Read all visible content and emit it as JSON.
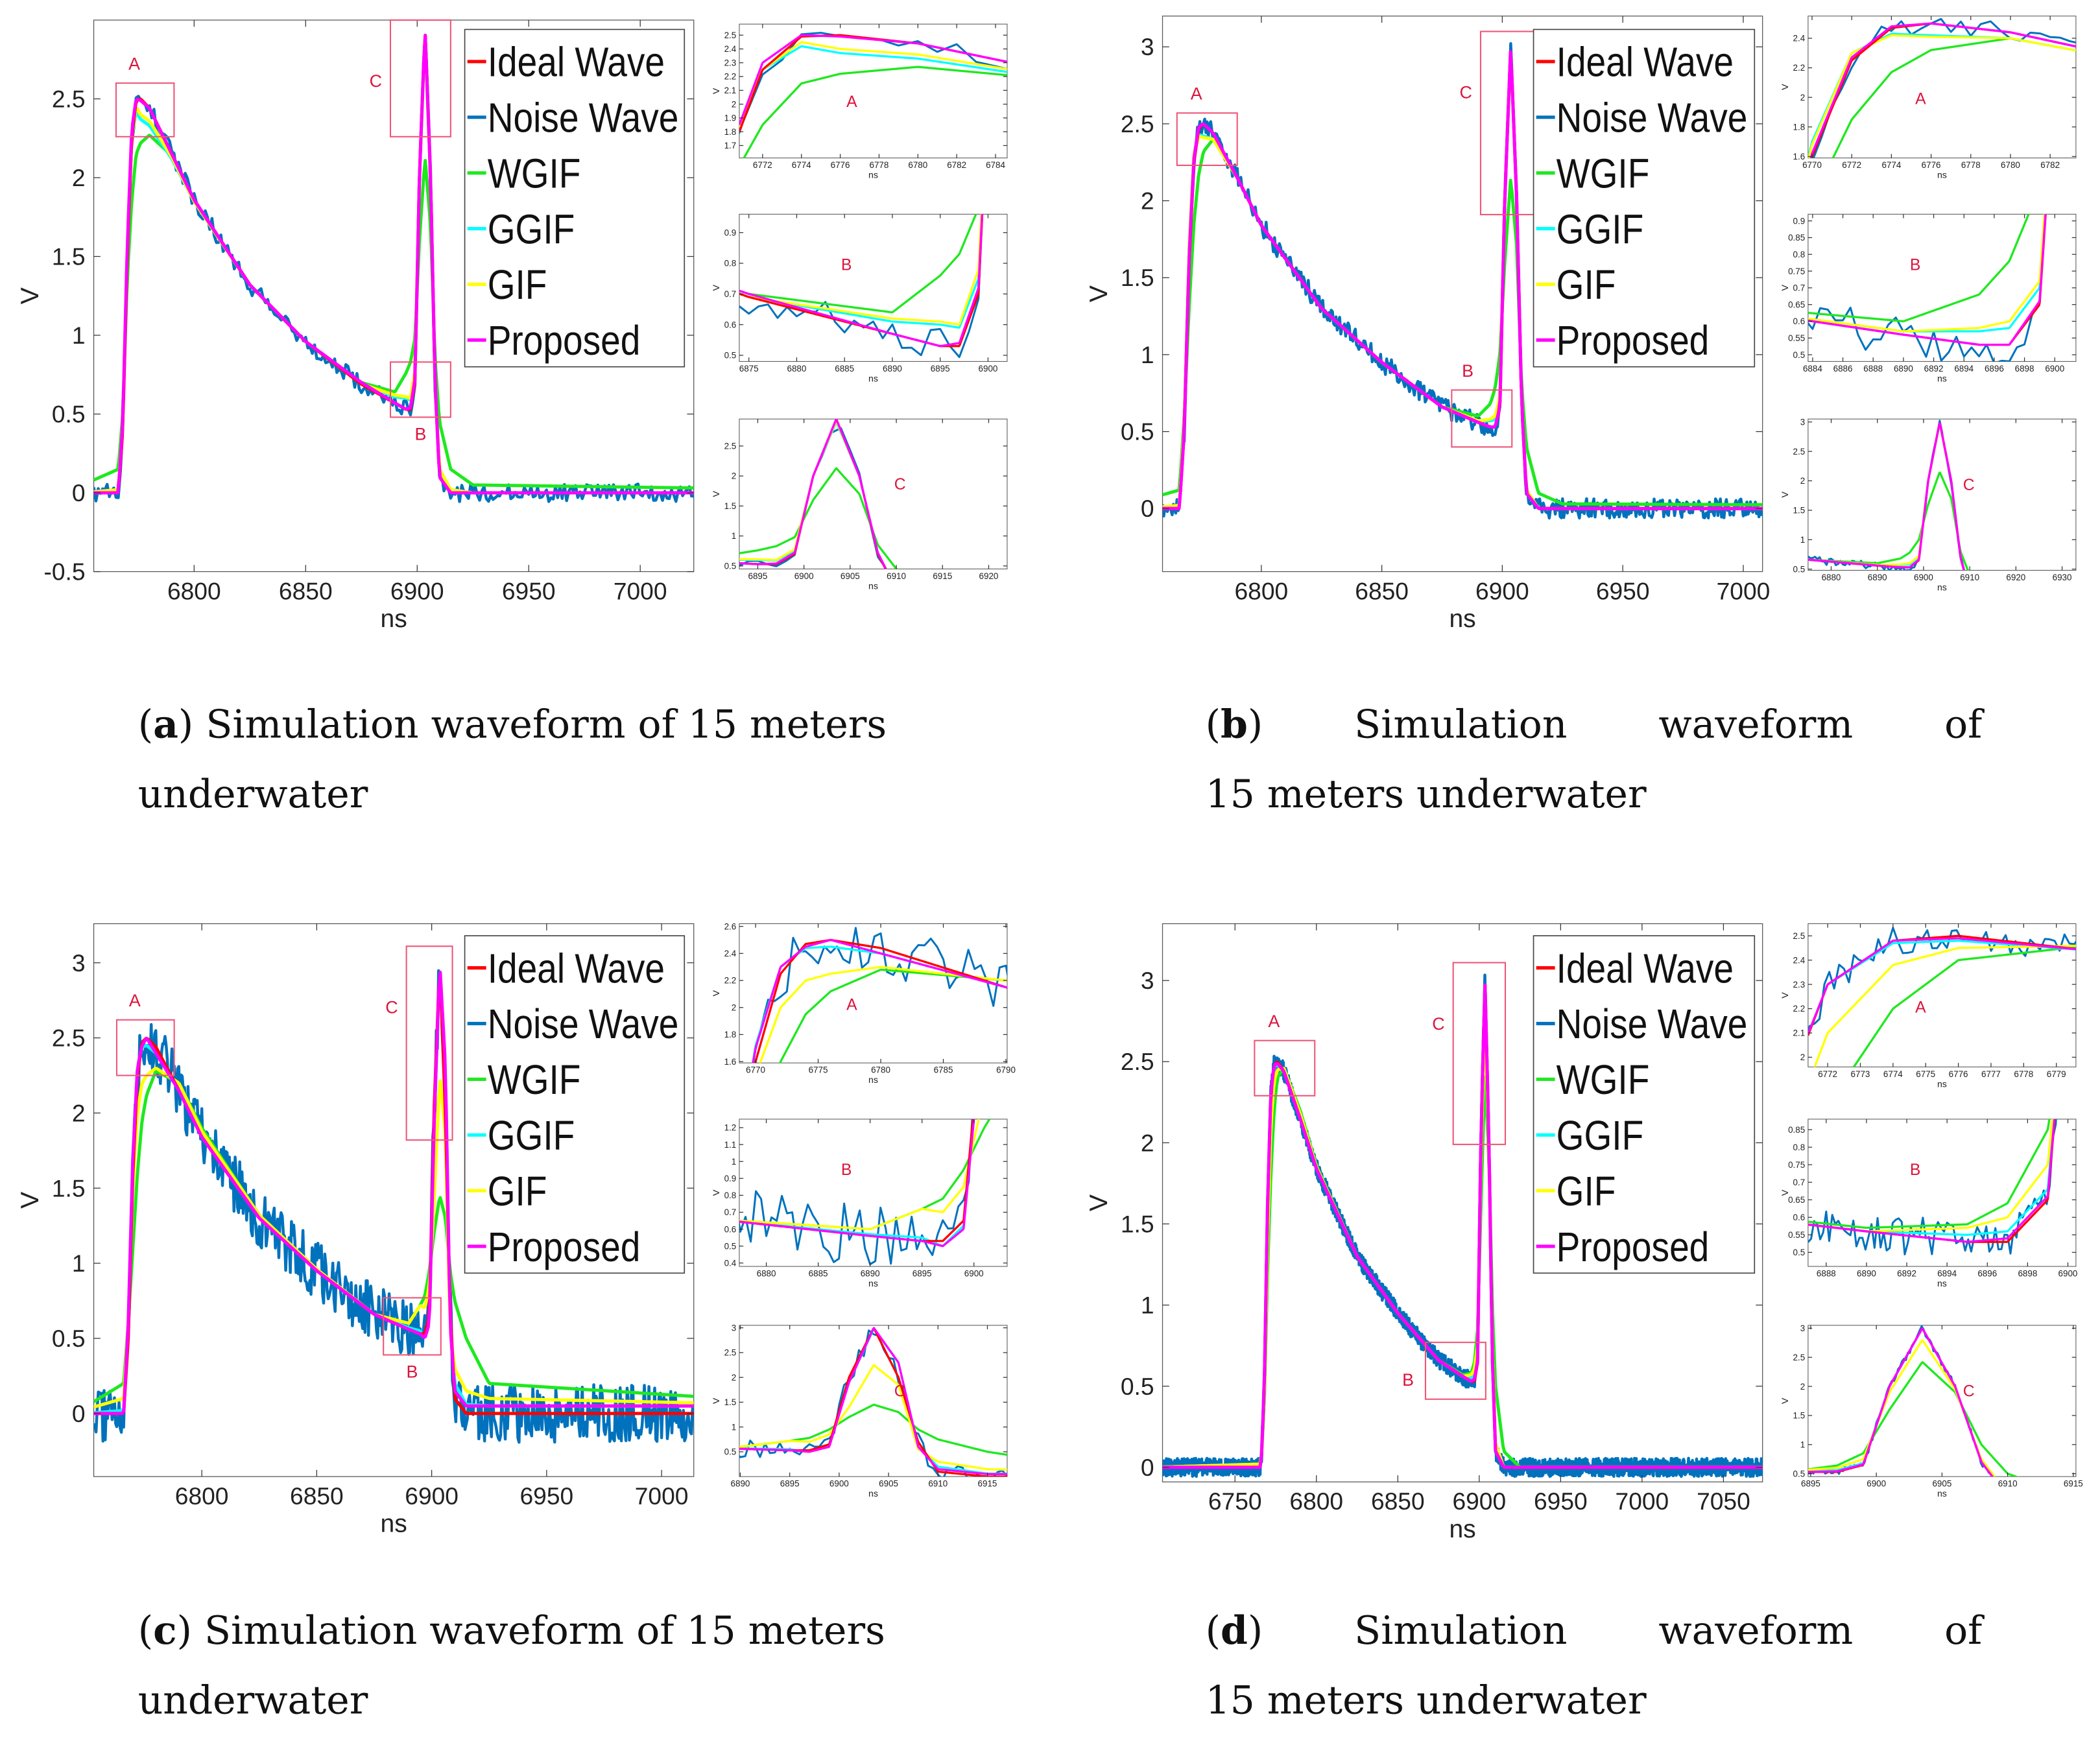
{
  "legend": [
    "Ideal Wave",
    "Noise Wave",
    "WGIF",
    "GGIF",
    "GIF",
    "Proposed"
  ],
  "colors": {
    "ideal": "#ff0000",
    "noise": "#0072bd",
    "wgif": "#1fe81f",
    "ggif": "#00ffff",
    "gif": "#ffff00",
    "proposed": "#ff00ff",
    "marker": "#ee5577",
    "marker_text": "#dc143c"
  },
  "axis": {
    "xlabel": "ns",
    "ylabel": "V"
  },
  "region_labels": [
    "A",
    "B",
    "C"
  ],
  "captions": [
    {
      "label": "a",
      "open": "(",
      "close": ")",
      "line1": "Simulation waveform of 15 meters",
      "line2": "underwater"
    },
    {
      "label": "b",
      "open": "(",
      "close": ")",
      "line1": "Simulation waveform of",
      "line2": "15 meters underwater"
    },
    {
      "label": "c",
      "open": "(",
      "close": ")",
      "line1": "Simulation waveform of 15 meters",
      "line2": "underwater"
    },
    {
      "label": "d",
      "open": "(",
      "close": ")",
      "line1": "Simulation waveform of",
      "line2": "15 meters underwater"
    }
  ],
  "chart_data": [
    {
      "type": "line",
      "panel": "a",
      "xlabel": "ns",
      "ylabel": "V",
      "xlim": [
        6755,
        7024
      ],
      "ylim": [
        -0.5,
        3.0
      ],
      "xticks": {
        "start": 6800,
        "step": 50,
        "end": 7000
      },
      "yticks": {
        "start": -0.5,
        "step": 0.5,
        "end": 2.5
      },
      "x": [
        6750,
        6766,
        6768,
        6770,
        6772,
        6774,
        6776,
        6780,
        6790,
        6800,
        6825,
        6850,
        6875,
        6890,
        6895,
        6897,
        6899,
        6901,
        6903.5,
        6906,
        6908,
        6910,
        6915,
        6925,
        7080
      ],
      "series": {
        "ideal": [
          0,
          0,
          0.4,
          1.5,
          2.25,
          2.49,
          2.5,
          2.44,
          2.15,
          1.86,
          1.32,
          0.96,
          0.69,
          0.57,
          0.53,
          0.53,
          0.7,
          2.0,
          2.95,
          2.0,
          0.7,
          0.1,
          0,
          0,
          0
        ],
        "wgif": [
          0.05,
          0.15,
          0.5,
          1.35,
          1.85,
          2.15,
          2.22,
          2.27,
          2.14,
          1.85,
          1.32,
          0.96,
          0.7,
          0.64,
          0.76,
          0.83,
          0.98,
          1.6,
          2.13,
          1.7,
          0.85,
          0.45,
          0.15,
          0.05,
          0.02
        ],
        "ggif": [
          0,
          0.02,
          0.45,
          1.55,
          2.25,
          2.42,
          2.37,
          2.33,
          2.12,
          1.85,
          1.32,
          0.96,
          0.69,
          0.61,
          0.6,
          0.59,
          0.75,
          2.0,
          2.9,
          2.0,
          0.7,
          0.15,
          0.02,
          0,
          0
        ],
        "gif": [
          0,
          0.02,
          0.45,
          1.55,
          2.25,
          2.45,
          2.4,
          2.36,
          2.13,
          1.85,
          1.32,
          0.96,
          0.69,
          0.62,
          0.61,
          0.6,
          0.78,
          2.0,
          2.92,
          2.0,
          0.7,
          0.15,
          0.02,
          0,
          0
        ],
        "proposed": [
          0,
          0,
          0.45,
          1.55,
          2.3,
          2.5,
          2.49,
          2.44,
          2.15,
          1.86,
          1.32,
          0.96,
          0.7,
          0.57,
          0.53,
          0.54,
          0.72,
          2.0,
          2.95,
          2.0,
          0.72,
          0.1,
          0,
          0,
          0
        ]
      },
      "noise_std": 0.035,
      "regions": [
        {
          "label": "A",
          "x": [
            6765,
            6791
          ],
          "y": [
            2.26,
            2.6
          ]
        },
        {
          "label": "B",
          "x": [
            6888,
            6915
          ],
          "y": [
            0.48,
            0.83
          ]
        },
        {
          "label": "C",
          "x": [
            6888,
            6915
          ],
          "y": [
            2.26,
            3.0
          ]
        }
      ],
      "insets": [
        {
          "label": "A",
          "xlim": [
            6770.8,
            6784.6
          ],
          "ylim": [
            1.61,
            2.58
          ],
          "xticks": {
            "start": 6772,
            "step": 2,
            "end": 6784
          },
          "yticks": {
            "start": 1.7,
            "step": 0.1,
            "end": 2.5
          }
        },
        {
          "label": "B",
          "xlim": [
            6874,
            6902
          ],
          "ylim": [
            0.48,
            0.96
          ],
          "xticks": {
            "start": 6875,
            "step": 5,
            "end": 6900
          },
          "yticks": {
            "start": 0.5,
            "step": 0.1,
            "end": 0.9
          }
        },
        {
          "label": "C",
          "xlim": [
            6893,
            6922
          ],
          "ylim": [
            0.45,
            2.95
          ],
          "xticks": {
            "start": 6895,
            "step": 5,
            "end": 6920
          },
          "yticks": {
            "start": 0.5,
            "step": 0.5,
            "end": 2.5
          }
        }
      ]
    },
    {
      "type": "line",
      "panel": "b",
      "xlabel": "ns",
      "ylabel": "V",
      "xlim": [
        6759,
        7008
      ],
      "ylim": [
        -0.41,
        3.2
      ],
      "xticks": {
        "start": 6800,
        "step": 50,
        "end": 7000
      },
      "yticks": {
        "start": 0,
        "step": 0.5,
        "end": 3
      },
      "x": [
        6750,
        6766,
        6768,
        6770,
        6772,
        6774,
        6776,
        6780,
        6790,
        6800,
        6825,
        6850,
        6875,
        6890,
        6895,
        6897,
        6899,
        6901,
        6903.5,
        6906,
        6908,
        6910,
        6915,
        6925,
        7080
      ],
      "series": {
        "ideal": [
          0,
          0,
          0.5,
          1.6,
          2.25,
          2.47,
          2.5,
          2.44,
          2.15,
          1.84,
          1.3,
          0.95,
          0.66,
          0.56,
          0.53,
          0.53,
          0.65,
          2.0,
          3.0,
          2.0,
          0.7,
          0.1,
          0,
          0,
          0
        ],
        "wgif": [
          0.05,
          0.12,
          0.6,
          1.3,
          1.85,
          2.17,
          2.32,
          2.4,
          2.15,
          1.84,
          1.3,
          0.95,
          0.66,
          0.6,
          0.68,
          0.78,
          1.0,
          1.6,
          2.15,
          1.7,
          0.8,
          0.4,
          0.1,
          0.03,
          0.02
        ],
        "ggif": [
          0,
          0.02,
          0.55,
          1.7,
          2.3,
          2.43,
          2.42,
          2.4,
          2.15,
          1.84,
          1.3,
          0.95,
          0.66,
          0.57,
          0.57,
          0.58,
          0.7,
          2.0,
          2.98,
          2.0,
          0.7,
          0.12,
          0,
          0,
          0
        ],
        "gif": [
          0,
          0.02,
          0.55,
          1.68,
          2.3,
          2.42,
          2.41,
          2.4,
          2.15,
          1.84,
          1.3,
          0.95,
          0.66,
          0.57,
          0.58,
          0.6,
          0.72,
          2.0,
          2.98,
          2.0,
          0.7,
          0.12,
          0,
          0,
          0
        ],
        "proposed": [
          0,
          0,
          0.5,
          1.62,
          2.27,
          2.48,
          2.5,
          2.44,
          2.15,
          1.84,
          1.3,
          0.95,
          0.66,
          0.56,
          0.53,
          0.53,
          0.66,
          2.0,
          3.0,
          2.0,
          0.7,
          0.1,
          0,
          0,
          0
        ]
      },
      "noise_std": 0.04,
      "regions": [
        {
          "label": "A",
          "x": [
            6765,
            6790
          ],
          "y": [
            2.23,
            2.57
          ]
        },
        {
          "label": "B",
          "x": [
            6879,
            6904
          ],
          "y": [
            0.4,
            0.77
          ]
        },
        {
          "label": "C",
          "x": [
            6891,
            6916
          ],
          "y": [
            1.91,
            3.1
          ]
        }
      ],
      "insets": [
        {
          "label": "A",
          "xlim": [
            6769.8,
            6783.3
          ],
          "ylim": [
            1.59,
            2.55
          ],
          "xticks": {
            "start": 6770,
            "step": 2,
            "end": 6782
          },
          "yticks": {
            "start": 1.6,
            "step": 0.2,
            "end": 2.4
          }
        },
        {
          "label": "B",
          "xlim": [
            6883.7,
            6901.4
          ],
          "ylim": [
            0.48,
            0.92
          ],
          "xticks": {
            "start": 6884,
            "step": 2,
            "end": 6900
          },
          "yticks": {
            "start": 0.5,
            "step": 0.05,
            "end": 0.9
          }
        },
        {
          "label": "C",
          "xlim": [
            6875,
            6933
          ],
          "ylim": [
            0.48,
            3.05
          ],
          "xticks": {
            "start": 6880,
            "step": 10,
            "end": 6930
          },
          "yticks": {
            "start": 0.5,
            "step": 0.5,
            "end": 3
          }
        }
      ]
    },
    {
      "type": "line",
      "panel": "c",
      "xlabel": "ns",
      "ylabel": "V",
      "xlim": [
        6753,
        7014
      ],
      "ylim": [
        -0.42,
        3.26
      ],
      "xticks": {
        "start": 6800,
        "step": 50,
        "end": 7000
      },
      "yticks": {
        "start": 0,
        "step": 0.5,
        "end": 3
      },
      "x": [
        6750,
        6766,
        6768,
        6770,
        6772,
        6774,
        6776,
        6780,
        6790,
        6800,
        6825,
        6850,
        6875,
        6890,
        6895,
        6897,
        6899,
        6901,
        6903.5,
        6906,
        6908,
        6910,
        6915,
        6925,
        7080
      ],
      "series": {
        "ideal": [
          0,
          0,
          0.5,
          1.6,
          2.25,
          2.47,
          2.5,
          2.44,
          2.15,
          1.84,
          1.3,
          0.95,
          0.66,
          0.56,
          0.53,
          0.53,
          0.65,
          2.0,
          3.0,
          2.0,
          0.7,
          0.1,
          0,
          0,
          0
        ],
        "wgif": [
          0.05,
          0.2,
          0.6,
          1.1,
          1.6,
          1.95,
          2.12,
          2.28,
          2.2,
          1.9,
          1.32,
          0.96,
          0.66,
          0.6,
          0.72,
          0.78,
          0.95,
          1.2,
          1.45,
          1.3,
          0.95,
          0.75,
          0.5,
          0.2,
          0.05
        ],
        "ggif": [
          0,
          0.02,
          0.6,
          1.72,
          2.3,
          2.44,
          2.45,
          2.4,
          2.15,
          1.84,
          1.3,
          0.95,
          0.66,
          0.57,
          0.55,
          0.5,
          0.62,
          1.9,
          2.98,
          2.3,
          0.6,
          0.2,
          0.06,
          0.05,
          0.05
        ],
        "gif": [
          0.03,
          0.1,
          0.6,
          1.5,
          2.0,
          2.2,
          2.25,
          2.3,
          2.2,
          1.88,
          1.32,
          0.96,
          0.66,
          0.6,
          0.72,
          0.7,
          0.85,
          1.4,
          2.25,
          1.85,
          0.55,
          0.3,
          0.15,
          0.1,
          0.05
        ],
        "proposed": [
          0,
          0,
          0.6,
          1.7,
          2.3,
          2.45,
          2.5,
          2.4,
          2.15,
          1.84,
          1.3,
          0.95,
          0.66,
          0.56,
          0.53,
          0.5,
          0.6,
          1.9,
          3.0,
          2.3,
          0.6,
          0.15,
          0.05,
          0.05,
          0.05
        ]
      },
      "noise_std": 0.12,
      "regions": [
        {
          "label": "A",
          "x": [
            6763,
            6788
          ],
          "y": [
            2.25,
            2.62
          ]
        },
        {
          "label": "B",
          "x": [
            6879,
            6904
          ],
          "y": [
            0.39,
            0.77
          ]
        },
        {
          "label": "C",
          "x": [
            6889,
            6909
          ],
          "y": [
            1.82,
            3.11
          ]
        }
      ],
      "insets": [
        {
          "label": "A",
          "xlim": [
            6768.7,
            6790.1
          ],
          "ylim": [
            1.59,
            2.62
          ],
          "xticks": {
            "start": 6770,
            "step": 5,
            "end": 6790
          },
          "yticks": {
            "start": 1.6,
            "step": 0.2,
            "end": 2.6
          }
        },
        {
          "label": "B",
          "xlim": [
            6877.4,
            6903.2
          ],
          "ylim": [
            0.38,
            1.25
          ],
          "xticks": {
            "start": 6880,
            "step": 5,
            "end": 6900
          },
          "yticks": {
            "start": 0.4,
            "step": 0.1,
            "end": 1.2
          }
        },
        {
          "label": "C",
          "xlim": [
            6889.9,
            6917
          ],
          "ylim": [
            0,
            3.05
          ],
          "xticks": {
            "start": 6890,
            "step": 5,
            "end": 6915
          },
          "yticks": {
            "start": 0.5,
            "step": 0.5,
            "end": 3
          }
        }
      ]
    },
    {
      "type": "line",
      "panel": "d",
      "xlabel": "ns",
      "ylabel": "V",
      "xlim": [
        6705.5,
        7074
      ],
      "ylim": [
        -0.09,
        3.35
      ],
      "xticks": {
        "start": 6750,
        "step": 50,
        "end": 7050
      },
      "yticks": {
        "start": 0,
        "step": 0.5,
        "end": 3
      },
      "x": [
        6700,
        6766,
        6768,
        6770,
        6772,
        6774,
        6776,
        6780,
        6790,
        6800,
        6825,
        6850,
        6875,
        6890,
        6895,
        6897,
        6899,
        6901,
        6903.5,
        6906,
        6908,
        6910,
        6915,
        6925,
        7080
      ],
      "series": {
        "ideal": [
          0,
          0,
          0.5,
          1.6,
          2.3,
          2.48,
          2.5,
          2.44,
          2.15,
          1.84,
          1.3,
          0.95,
          0.66,
          0.56,
          0.53,
          0.53,
          0.65,
          2.0,
          3.0,
          2.0,
          0.7,
          0.1,
          0,
          0,
          0
        ],
        "wgif": [
          0,
          0.02,
          0.4,
          1.2,
          1.8,
          2.2,
          2.4,
          2.46,
          2.2,
          1.86,
          1.3,
          0.95,
          0.66,
          0.57,
          0.58,
          0.64,
          0.85,
          1.6,
          2.42,
          1.9,
          1.0,
          0.5,
          0.1,
          0,
          0
        ],
        "ggif": [
          0,
          0.02,
          0.52,
          1.62,
          2.3,
          2.47,
          2.48,
          2.44,
          2.15,
          1.84,
          1.3,
          0.95,
          0.66,
          0.56,
          0.55,
          0.56,
          0.68,
          2.0,
          3.0,
          2.0,
          0.7,
          0.1,
          0,
          0,
          0
        ],
        "gif": [
          0,
          0.02,
          0.45,
          1.4,
          2.1,
          2.38,
          2.45,
          2.46,
          2.18,
          1.85,
          1.3,
          0.95,
          0.66,
          0.56,
          0.57,
          0.6,
          0.75,
          1.9,
          2.8,
          1.95,
          0.75,
          0.15,
          0,
          0,
          0
        ],
        "proposed": [
          0,
          0,
          0.5,
          1.62,
          2.3,
          2.48,
          2.49,
          2.44,
          2.15,
          1.84,
          1.3,
          0.95,
          0.66,
          0.56,
          0.53,
          0.54,
          0.66,
          2.0,
          3.0,
          2.0,
          0.7,
          0.1,
          0,
          0,
          0
        ]
      },
      "noise_std": 0.035,
      "regions": [
        {
          "label": "A",
          "x": [
            6762,
            6799
          ],
          "y": [
            2.29,
            2.63
          ]
        },
        {
          "label": "B",
          "x": [
            6867,
            6904
          ],
          "y": [
            0.42,
            0.77
          ]
        },
        {
          "label": "C",
          "x": [
            6884,
            6916
          ],
          "y": [
            1.99,
            3.11
          ]
        }
      ],
      "insets": [
        {
          "label": "A",
          "xlim": [
            6771.4,
            6779.6
          ],
          "ylim": [
            1.96,
            2.55
          ],
          "xticks": {
            "start": 6772,
            "step": 1,
            "end": 6779
          },
          "yticks": {
            "start": 2.0,
            "step": 0.1,
            "end": 2.5
          }
        },
        {
          "label": "B",
          "xlim": [
            6887.1,
            6900.4
          ],
          "ylim": [
            0.46,
            0.88
          ],
          "xticks": {
            "start": 6888,
            "step": 2,
            "end": 6900
          },
          "yticks": {
            "start": 0.5,
            "step": 0.05,
            "end": 0.85
          }
        },
        {
          "label": "C",
          "xlim": [
            6894.8,
            6915.2
          ],
          "ylim": [
            0.45,
            3.05
          ],
          "xticks": {
            "start": 6895,
            "step": 5,
            "end": 6915
          },
          "yticks": {
            "start": 0.5,
            "step": 0.5,
            "end": 3
          }
        }
      ]
    }
  ]
}
